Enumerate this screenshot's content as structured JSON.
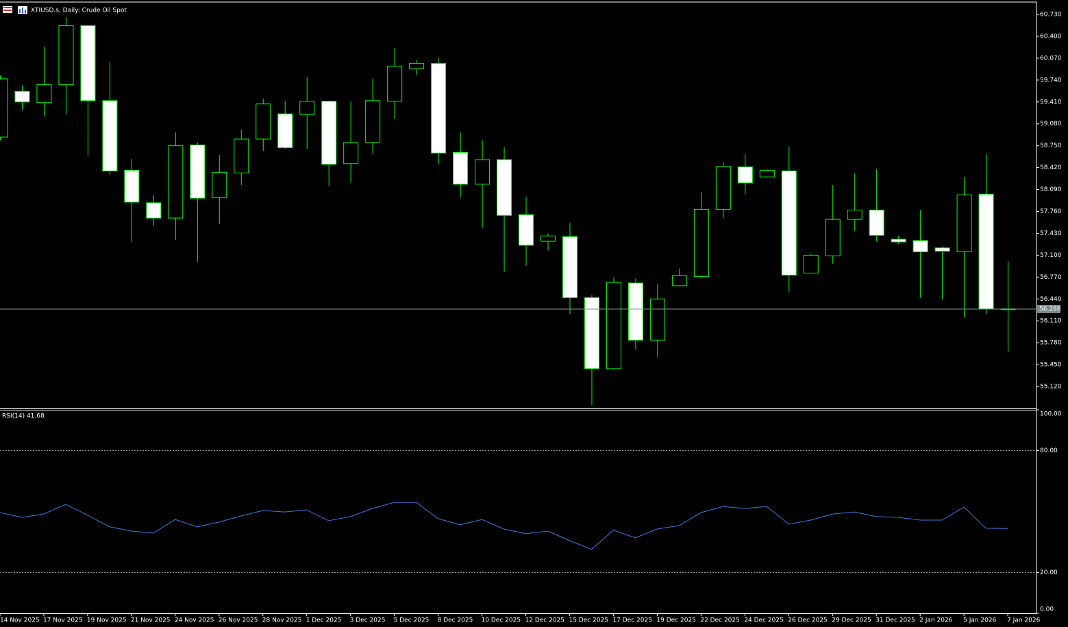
{
  "chart_data": [
    {
      "type": "candlestick",
      "title": "XTIUSD.s, Daily:  Crude Oil Spot",
      "categories": [
        "14 Nov 2025",
        null,
        "17 Nov 2025",
        null,
        "19 Nov 2025",
        null,
        "21 Nov 2025",
        null,
        "24 Nov 2025",
        null,
        "26 Nov 2025",
        null,
        "28 Nov 2025",
        null,
        "1 Dec 2025",
        null,
        "3 Dec 2025",
        null,
        "5 Dec 2025",
        null,
        "8 Dec 2025",
        null,
        "10 Dec 2025",
        null,
        "12 Dec 2025",
        null,
        "15 Dec 2025",
        null,
        "17 Dec 2025",
        null,
        "19 Dec 2025",
        null,
        "22 Dec 2025",
        null,
        "24 Dec 2025",
        null,
        "26 Dec 2025",
        null,
        "29 Dec 2025",
        null,
        "31 Dec 2025",
        null,
        "2 Jan 2026",
        null,
        "5 Jan 2026",
        null,
        "7 Jan 2026"
      ],
      "open": [
        58.88,
        59.57,
        59.4,
        59.67,
        60.56,
        59.43,
        58.38,
        57.89,
        57.66,
        58.76,
        57.97,
        58.34,
        58.85,
        59.23,
        59.22,
        59.42,
        58.48,
        58.8,
        59.42,
        59.91,
        59.99,
        58.65,
        58.17,
        58.54,
        57.71,
        57.31,
        57.38,
        56.46,
        55.39,
        56.68,
        55.82,
        56.64,
        56.78,
        57.79,
        58.43,
        58.28,
        58.37,
        56.83,
        57.09,
        57.64,
        57.78,
        57.34,
        57.32,
        57.21,
        57.15,
        58.02,
        56.29
      ],
      "high": [
        59.81,
        59.66,
        60.25,
        60.69,
        60.57,
        60.01,
        58.55,
        58.0,
        58.95,
        58.8,
        58.61,
        58.99,
        59.46,
        59.43,
        59.79,
        59.43,
        59.42,
        59.76,
        60.22,
        60.04,
        60.07,
        58.95,
        58.83,
        58.73,
        57.98,
        57.43,
        57.59,
        56.5,
        56.77,
        56.75,
        56.66,
        56.9,
        58.05,
        58.5,
        58.63,
        58.4,
        58.74,
        57.12,
        58.16,
        58.33,
        58.4,
        57.39,
        57.78,
        57.23,
        58.28,
        58.63,
        57.01
      ],
      "low": [
        58.83,
        59.29,
        59.19,
        59.22,
        58.6,
        58.31,
        57.3,
        57.54,
        57.33,
        57.0,
        57.57,
        58.16,
        58.67,
        58.7,
        58.7,
        58.14,
        58.19,
        58.62,
        59.15,
        59.82,
        58.47,
        57.97,
        57.51,
        56.85,
        56.94,
        57.17,
        56.21,
        54.84,
        55.37,
        55.68,
        55.56,
        56.63,
        56.76,
        57.66,
        58.02,
        58.27,
        56.54,
        56.82,
        56.97,
        57.47,
        57.31,
        57.27,
        56.46,
        56.43,
        56.16,
        56.22,
        55.64
      ],
      "close": [
        59.76,
        59.41,
        59.67,
        60.56,
        59.43,
        58.37,
        57.9,
        57.66,
        58.75,
        57.96,
        58.35,
        58.85,
        59.38,
        58.72,
        59.42,
        58.47,
        58.8,
        59.43,
        59.95,
        59.99,
        58.64,
        58.17,
        58.54,
        57.7,
        57.25,
        57.39,
        56.46,
        55.39,
        56.69,
        55.82,
        56.44,
        56.79,
        57.79,
        58.44,
        58.19,
        58.38,
        56.8,
        57.1,
        57.64,
        57.78,
        57.4,
        57.3,
        57.15,
        57.16,
        58.01,
        56.29,
        56.288
      ],
      "bull_fill": "#000000",
      "bear_fill": "#ffffff",
      "outline_color": "#00ff00",
      "last_price": 56.288,
      "ylim": [
        54.79,
        60.916
      ],
      "yticks": [
        {
          "value": 60.73,
          "label": "60.730"
        },
        {
          "value": 60.4,
          "label": "60.400"
        },
        {
          "value": 60.07,
          "label": "60.070"
        },
        {
          "value": 59.74,
          "label": "59.740"
        },
        {
          "value": 59.41,
          "label": "59.410"
        },
        {
          "value": 59.08,
          "label": "59.080"
        },
        {
          "value": 58.75,
          "label": "58.750"
        },
        {
          "value": 58.42,
          "label": "58.420"
        },
        {
          "value": 58.09,
          "label": "58.090"
        },
        {
          "value": 57.76,
          "label": "57.760"
        },
        {
          "value": 57.43,
          "label": "57.430"
        },
        {
          "value": 57.1,
          "label": "57.100"
        },
        {
          "value": 56.77,
          "label": "56.770"
        },
        {
          "value": 56.44,
          "label": "56.440"
        },
        {
          "value": 56.11,
          "label": "56.110"
        },
        {
          "value": 55.78,
          "label": "55.780"
        },
        {
          "value": 55.45,
          "label": "55.450"
        },
        {
          "value": 55.12,
          "label": "55.120"
        }
      ]
    },
    {
      "type": "line",
      "title": "RSI(14) 41.68",
      "series": [
        {
          "color": "#3c78e6",
          "values": [
            49.5,
            47.15,
            48.8,
            53.5,
            48.2,
            42.5,
            40.4,
            39.4,
            46.1,
            42.5,
            44.8,
            47.8,
            50.5,
            49.8,
            50.8,
            45.5,
            47.5,
            51.5,
            54.5,
            54.5,
            46.5,
            43.5,
            46.1,
            41.4,
            39.1,
            40.4,
            35.7,
            31.4,
            40.8,
            37.1,
            41.4,
            43.1,
            49.5,
            52.5,
            51.5,
            52.5,
            43.8,
            45.8,
            48.8,
            49.8,
            47.5,
            47.15,
            45.8,
            45.8,
            52.2,
            41.8,
            41.68
          ]
        }
      ],
      "levels": [
        80,
        20
      ],
      "ylim": [
        0,
        100
      ],
      "yticks": [
        {
          "value": 100,
          "label": "100.00"
        },
        {
          "value": 80,
          "label": "80.00"
        },
        {
          "value": 20,
          "label": "20.00"
        },
        {
          "value": 0,
          "label": "0.00"
        }
      ]
    }
  ]
}
